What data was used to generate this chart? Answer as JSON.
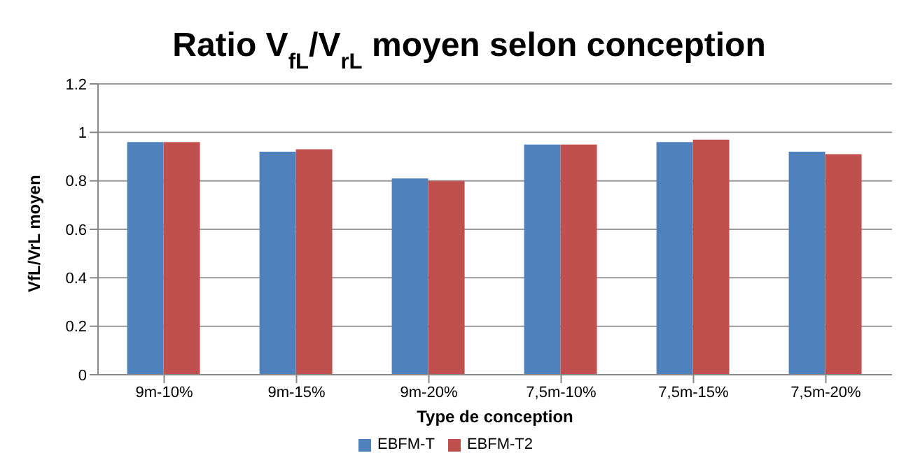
{
  "chart_data": {
    "type": "bar",
    "title": "Ratio V$_{fL}$/V$_{rL}$ moyen selon conception",
    "xlabel": "Type de conception",
    "ylabel": "VfL/VrL moyen",
    "categories": [
      "9m-10%",
      "9m-15%",
      "9m-20%",
      "7,5m-10%",
      "7,5m-15%",
      "7,5m-20%"
    ],
    "series": [
      {
        "name": "EBFM-T",
        "color": "#4f81bd",
        "values": [
          0.96,
          0.92,
          0.81,
          0.95,
          0.96,
          0.92
        ]
      },
      {
        "name": "EBFM-T2",
        "color": "#c0504d",
        "values": [
          0.96,
          0.93,
          0.8,
          0.95,
          0.97,
          0.91
        ]
      }
    ],
    "ylim": [
      0,
      1.2
    ],
    "yticks": [
      0,
      0.2,
      0.4,
      0.6,
      0.8,
      1,
      1.2
    ],
    "grid": "y",
    "legend": "bottom"
  }
}
